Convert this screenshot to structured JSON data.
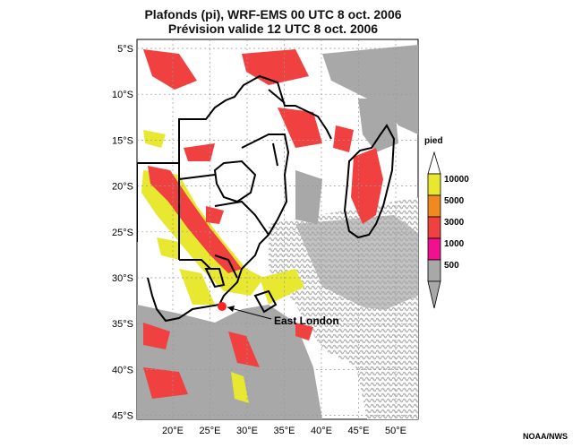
{
  "title_line1": "Plafonds (pi), WRF-EMS 00 UTC 8 oct. 2006",
  "title_line2": "Prévision valide 12 UTC 8 oct. 2006",
  "lat_labels": [
    "5°S",
    "10°S",
    "15°S",
    "20°S",
    "25°S",
    "30°S",
    "35°S",
    "40°S",
    "45°S"
  ],
  "lon_labels": [
    "20°E",
    "25°E",
    "30°E",
    "35°E",
    "40°E",
    "45°E",
    "50°E"
  ],
  "legend": {
    "unit": "pied",
    "levels": [
      "10000",
      "5000",
      "3000",
      "1000",
      "500"
    ],
    "colors": [
      "#e8e830",
      "#f08a20",
      "#f04040",
      "#f01090",
      "#a8a8a8"
    ]
  },
  "annotation": "East London",
  "credit": "NOAA/NWS"
}
